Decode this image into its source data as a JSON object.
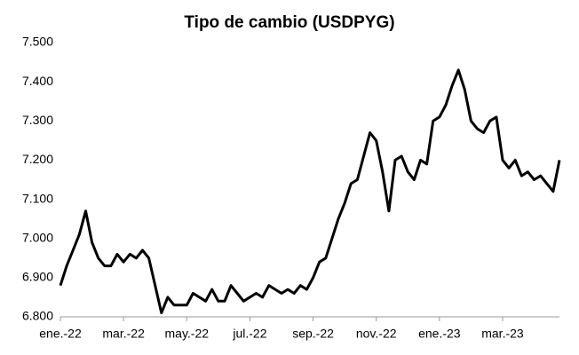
{
  "chart_data": {
    "type": "line",
    "title": "Tipo de cambio (USDPYG)",
    "categories": [
      "ene.-22",
      null,
      null,
      null,
      null,
      null,
      null,
      null,
      null,
      null,
      "mar.-22",
      null,
      null,
      null,
      null,
      null,
      null,
      null,
      null,
      null,
      "may.-22",
      null,
      null,
      null,
      null,
      null,
      null,
      null,
      null,
      null,
      "jul.-22",
      null,
      null,
      null,
      null,
      null,
      null,
      null,
      null,
      null,
      "sep.-22",
      null,
      null,
      null,
      null,
      null,
      null,
      null,
      null,
      null,
      "nov.-22",
      null,
      null,
      null,
      null,
      null,
      null,
      null,
      null,
      null,
      "ene.-23",
      null,
      null,
      null,
      null,
      null,
      null,
      null,
      null,
      null,
      "mar.-23",
      null,
      null,
      null,
      null,
      null,
      null,
      null,
      null,
      null
    ],
    "series": [
      {
        "color": "#000000",
        "values": [
          6.88,
          6.93,
          6.97,
          7.01,
          7.07,
          6.99,
          6.95,
          6.93,
          6.93,
          6.96,
          6.94,
          6.96,
          6.95,
          6.97,
          6.95,
          6.88,
          6.81,
          6.85,
          6.83,
          6.83,
          6.83,
          6.86,
          6.85,
          6.84,
          6.87,
          6.84,
          6.84,
          6.88,
          6.86,
          6.84,
          6.85,
          6.86,
          6.85,
          6.88,
          6.87,
          6.86,
          6.87,
          6.86,
          6.88,
          6.87,
          6.9,
          6.94,
          6.95,
          7.0,
          7.05,
          7.09,
          7.14,
          7.15,
          7.21,
          7.27,
          7.25,
          7.17,
          7.07,
          7.2,
          7.21,
          7.17,
          7.15,
          7.2,
          7.19,
          7.3,
          7.31,
          7.34,
          7.39,
          7.43,
          7.38,
          7.3,
          7.28,
          7.27,
          7.3,
          7.31,
          7.2,
          7.18,
          7.2,
          7.16,
          7.17,
          7.15,
          7.16,
          7.14,
          7.12,
          7.2
        ]
      }
    ],
    "ylim": [
      6.8,
      7.5
    ],
    "yticks": [
      {
        "value": 6.8,
        "label": "6.800"
      },
      {
        "value": 6.9,
        "label": "6.900"
      },
      {
        "value": 7.0,
        "label": "7.000"
      },
      {
        "value": 7.1,
        "label": "7.100"
      },
      {
        "value": 7.2,
        "label": "7.200"
      },
      {
        "value": 7.3,
        "label": "7.300"
      },
      {
        "value": 7.4,
        "label": "7.400"
      },
      {
        "value": 7.5,
        "label": "7.500"
      }
    ],
    "grid": false
  }
}
